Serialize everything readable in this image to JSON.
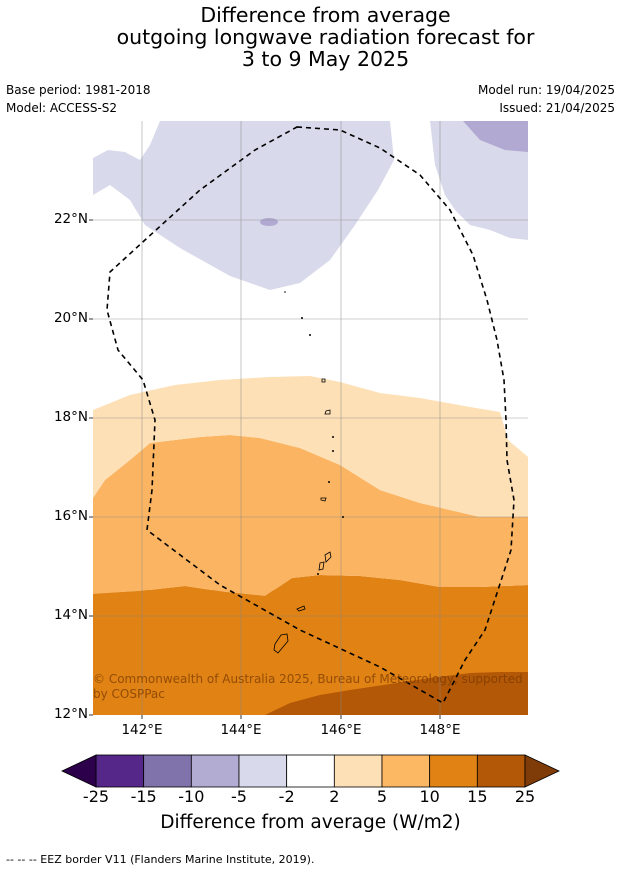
{
  "title": {
    "line1": "Difference from average",
    "line2": "outgoing longwave radiation forecast for",
    "line3": "3 to 9 May 2025"
  },
  "meta": {
    "base_period": "Base period: 1981-2018",
    "model": "Model: ACCESS-S2",
    "model_run": "Model run: 19/04/2025",
    "issued": "Issued: 21/04/2025"
  },
  "map": {
    "lat_labels": [
      "22°N",
      "20°N",
      "18°N",
      "16°N",
      "14°N",
      "12°N"
    ],
    "lon_labels": [
      "142°E",
      "144°E",
      "146°E",
      "148°E"
    ],
    "copyright": "© Commonwealth of Australia 2025, Bureau of Meteorology, supported by COSPPac",
    "colors": {
      "neg_light": "#d8d9ea",
      "neg_mid": "#b1a9d2",
      "pos_2_5": "#fde0b6",
      "pos_5_10": "#fbb562",
      "pos_10_15": "#e08214",
      "pos_15_25": "#b35806"
    }
  },
  "colorbar": {
    "ticks": [
      "-25",
      "-15",
      "-10",
      "-5",
      "-2",
      "2",
      "5",
      "10",
      "15",
      "25"
    ],
    "colors": [
      "#542788",
      "#8073ac",
      "#b2abd2",
      "#d8daeb",
      "#ffffff",
      "#fee0b6",
      "#fdb863",
      "#e08214",
      "#b35806"
    ],
    "under_color": "#2d004b",
    "over_color": "#7f3b08",
    "label": "Difference from average (W/m2)"
  },
  "footnote": "--  --  -- EEZ border V11 (Flanders Marine Institute, 2019)."
}
